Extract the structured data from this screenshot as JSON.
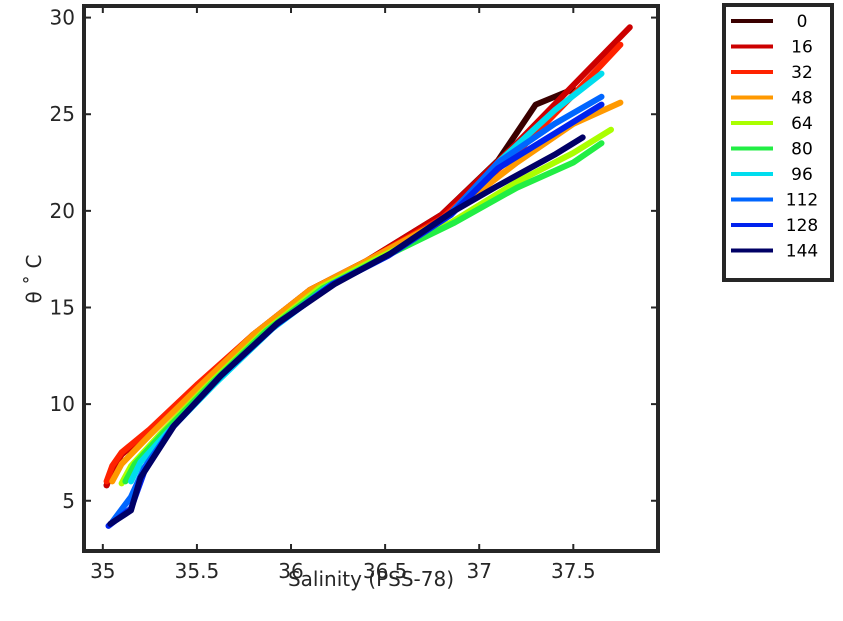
{
  "chart_data": {
    "type": "line",
    "title": "",
    "xlabel": "Salinity (PSS-78)",
    "ylabel": "θ ˚ C",
    "xlim": [
      34.9,
      37.95
    ],
    "ylim": [
      2.4,
      30.6
    ],
    "xticks": [
      35,
      35.5,
      36,
      36.5,
      37,
      37.5
    ],
    "xtick_labels": [
      "35",
      "35.5",
      "36",
      "36.5",
      "37",
      "37.5"
    ],
    "yticks": [
      5,
      10,
      15,
      20,
      25,
      30
    ],
    "ytick_labels": [
      "5",
      "10",
      "15",
      "20",
      "25",
      "30"
    ],
    "grid": false,
    "legend_position": "outside-top-right",
    "colormap": "jet",
    "series": [
      {
        "name": "0",
        "color": "#3a0000",
        "x": [
          35.02,
          35.05,
          35.1,
          35.25,
          35.5,
          35.8,
          36.1,
          36.4,
          36.8,
          37.1,
          37.3,
          37.5
        ],
        "y": [
          5.8,
          6.6,
          7.4,
          8.6,
          10.9,
          13.6,
          15.9,
          17.4,
          19.8,
          22.6,
          25.5,
          26.3
        ]
      },
      {
        "name": "16",
        "color": "#cc0000",
        "x": [
          35.02,
          35.05,
          35.1,
          35.25,
          35.5,
          35.8,
          36.1,
          36.4,
          36.8,
          37.2,
          37.5,
          37.8
        ],
        "y": [
          5.8,
          6.6,
          7.4,
          8.6,
          10.9,
          13.6,
          15.9,
          17.4,
          19.8,
          23.5,
          26.5,
          29.5
        ]
      },
      {
        "name": "32",
        "color": "#ff2200",
        "x": [
          35.02,
          35.05,
          35.1,
          35.25,
          35.5,
          35.8,
          36.1,
          36.4,
          36.8,
          37.2,
          37.5,
          37.75
        ],
        "y": [
          6.0,
          6.8,
          7.5,
          8.7,
          11.0,
          13.6,
          15.9,
          17.4,
          19.6,
          23.0,
          26.0,
          28.6
        ]
      },
      {
        "name": "48",
        "color": "#ff9900",
        "x": [
          35.05,
          35.1,
          35.25,
          35.5,
          35.8,
          36.1,
          36.4,
          36.8,
          37.2,
          37.5,
          37.75
        ],
        "y": [
          6.0,
          6.9,
          8.4,
          10.8,
          13.6,
          15.9,
          17.4,
          19.5,
          22.5,
          24.5,
          25.6
        ]
      },
      {
        "name": "64",
        "color": "#aaff00",
        "x": [
          35.1,
          35.15,
          35.3,
          35.55,
          35.85,
          36.15,
          36.45,
          36.85,
          37.2,
          37.5,
          37.7
        ],
        "y": [
          5.9,
          6.8,
          8.4,
          10.9,
          13.7,
          16.0,
          17.5,
          19.4,
          21.5,
          23.0,
          24.2
        ]
      },
      {
        "name": "80",
        "color": "#22ee44",
        "x": [
          35.12,
          35.17,
          35.32,
          35.57,
          35.87,
          36.17,
          36.47,
          36.87,
          37.2,
          37.5,
          37.65
        ],
        "y": [
          6.0,
          6.9,
          8.5,
          11.0,
          13.8,
          16.0,
          17.5,
          19.4,
          21.2,
          22.5,
          23.5
        ]
      },
      {
        "name": "96",
        "color": "#00ddee",
        "x": [
          35.15,
          35.2,
          35.35,
          35.6,
          35.9,
          36.2,
          36.5,
          36.85,
          37.1,
          37.4,
          37.65
        ],
        "y": [
          6.0,
          7.0,
          8.6,
          11.1,
          13.9,
          16.1,
          17.6,
          19.8,
          22.5,
          25.2,
          27.1
        ]
      },
      {
        "name": "112",
        "color": "#0066ff",
        "x": [
          35.05,
          35.15,
          35.22,
          35.37,
          35.62,
          35.92,
          36.22,
          36.52,
          36.85,
          37.1,
          37.4,
          37.65
        ],
        "y": [
          3.9,
          5.2,
          6.7,
          8.8,
          11.4,
          14.1,
          16.2,
          17.7,
          19.9,
          22.5,
          24.5,
          25.9
        ]
      },
      {
        "name": "128",
        "color": "#0022ee",
        "x": [
          35.03,
          35.15,
          35.22,
          35.37,
          35.62,
          35.92,
          36.22,
          36.52,
          36.85,
          37.1,
          37.4,
          37.65
        ],
        "y": [
          3.7,
          4.6,
          6.5,
          8.8,
          11.4,
          14.1,
          16.2,
          17.7,
          19.8,
          22.2,
          24.0,
          25.5
        ]
      },
      {
        "name": "144",
        "color": "#000066",
        "x": [
          35.04,
          35.15,
          35.2,
          35.38,
          35.63,
          35.93,
          36.23,
          36.53,
          36.85,
          37.1,
          37.4,
          37.55
        ],
        "y": [
          3.8,
          4.5,
          6.2,
          8.9,
          11.5,
          14.2,
          16.2,
          17.8,
          19.9,
          21.3,
          22.9,
          23.8
        ]
      }
    ]
  }
}
